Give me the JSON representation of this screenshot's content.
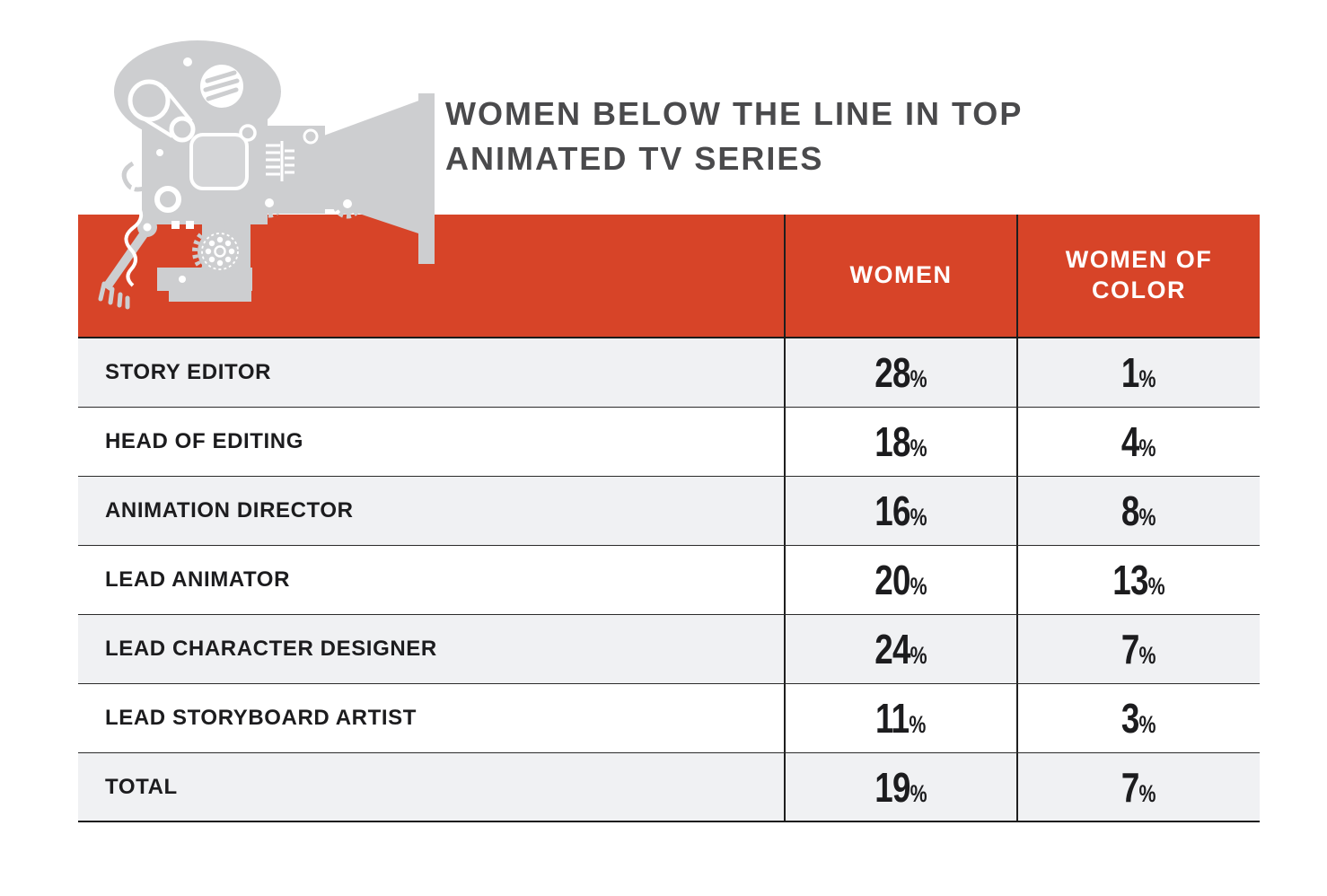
{
  "title": {
    "line1": "WOMEN BELOW THE LINE IN TOP",
    "line2": "ANIMATED TV SERIES"
  },
  "table": {
    "columns": [
      "WOMEN",
      "WOMEN OF COLOR"
    ],
    "rows": [
      {
        "label": "STORY EDITOR",
        "women": "28%",
        "women_of_color": "1%"
      },
      {
        "label": "HEAD OF EDITING",
        "women": "18%",
        "women_of_color": "4%"
      },
      {
        "label": "ANIMATION DIRECTOR",
        "women": "16%",
        "women_of_color": "8%"
      },
      {
        "label": "LEAD ANIMATOR",
        "women": "20%",
        "women_of_color": "13%"
      },
      {
        "label": "LEAD CHARACTER DESIGNER",
        "women": "24%",
        "women_of_color": "7%"
      },
      {
        "label": "LEAD STORYBOARD ARTIST",
        "women": "11%",
        "women_of_color": "3%"
      },
      {
        "label": "TOTAL",
        "women": "19%",
        "women_of_color": "7%"
      }
    ]
  },
  "icons": [
    {
      "name": "film-camera-illustration",
      "description": "gray vintage movie film camera silhouette with reels, gears, lens cone and key"
    }
  ],
  "colors": {
    "accent_red": "#D74428",
    "row_shade_gray": "#F0F1F3",
    "camera_gray": "#CDCED0",
    "title_gray": "#4A4A4C",
    "text_dark": "#1C1C1E",
    "header_text": "#FFFFFF"
  },
  "chart_data": {
    "type": "table",
    "title": "WOMEN BELOW THE LINE IN TOP ANIMATED TV SERIES",
    "categories": [
      "STORY EDITOR",
      "HEAD OF EDITING",
      "ANIMATION DIRECTOR",
      "LEAD ANIMATOR",
      "LEAD CHARACTER DESIGNER",
      "LEAD STORYBOARD ARTIST",
      "TOTAL"
    ],
    "series": [
      {
        "name": "WOMEN",
        "values": [
          28,
          18,
          16,
          20,
          24,
          11,
          19
        ],
        "unit": "percent"
      },
      {
        "name": "WOMEN OF COLOR",
        "values": [
          1,
          4,
          8,
          13,
          7,
          3,
          7
        ],
        "unit": "percent"
      }
    ],
    "legend_position": "column headers",
    "grid": "row-and-column-rules",
    "notes": "Header band red with white column labels; alternating light-gray row shading"
  }
}
